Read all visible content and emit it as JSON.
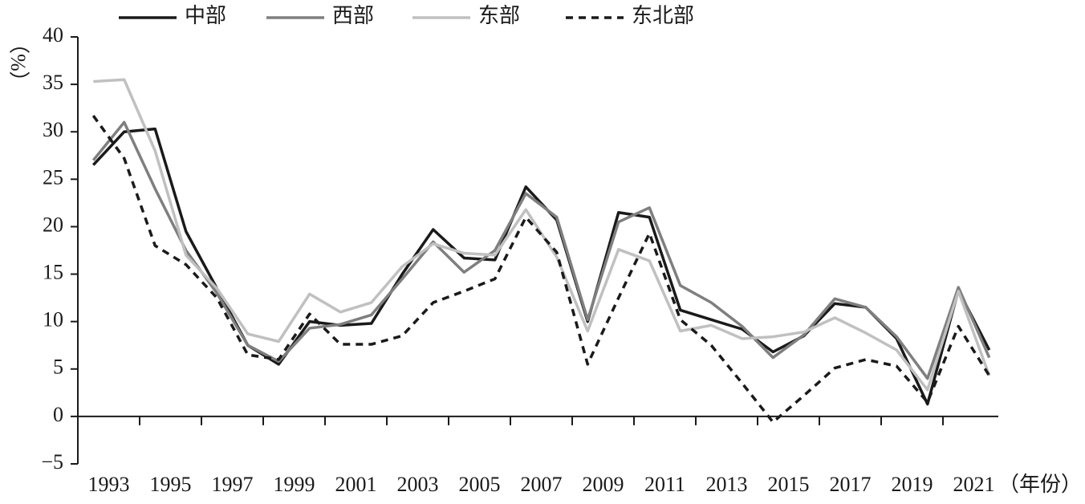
{
  "chart_data": {
    "type": "line",
    "y_label": "（%）",
    "x_label": "（年份）",
    "categories": [
      "1993",
      null,
      "1995",
      null,
      "1997",
      null,
      "1999",
      null,
      "2001",
      null,
      "2003",
      null,
      "2005",
      null,
      "2007",
      null,
      "2009",
      null,
      "2011",
      null,
      "2013",
      null,
      "2015",
      null,
      "2017",
      null,
      "2019",
      null,
      "2021",
      null
    ],
    "series": [
      {
        "name": "中部",
        "color": "#1a1a1a",
        "dashed": false,
        "values": [
          26.5,
          30,
          30.3,
          19.5,
          13.5,
          7.5,
          5.5,
          10,
          9.6,
          9.8,
          15,
          19.7,
          16.7,
          16.5,
          24.2,
          20.7,
          10,
          21.5,
          21,
          11.2,
          10.2,
          9.2,
          6.8,
          8.5,
          11.9,
          11.5,
          8.2,
          1.3,
          13.3,
          7
        ]
      },
      {
        "name": "西部",
        "color": "#7f7f7f",
        "dashed": false,
        "values": [
          27,
          31,
          24,
          17.5,
          13,
          7.5,
          5.8,
          9.3,
          9.7,
          10.7,
          14.5,
          18.4,
          15.2,
          17.5,
          23.5,
          21,
          10.2,
          20.5,
          22,
          13.8,
          12,
          9.5,
          6.2,
          8.6,
          12.4,
          11.5,
          8.4,
          4,
          13.6,
          6.2
        ]
      },
      {
        "name": "东部",
        "color": "#c0c0c0",
        "dashed": false,
        "values": [
          35.3,
          35.5,
          28,
          17,
          13.5,
          8.7,
          7.9,
          12.9,
          11,
          12,
          15.8,
          18.2,
          17.2,
          17,
          21.8,
          16.8,
          9,
          17.6,
          16.4,
          9,
          9.6,
          8.2,
          8.4,
          8.9,
          10.4,
          8.8,
          7,
          2.8,
          13.2,
          4.3
        ]
      },
      {
        "name": "东北部",
        "color": "#1a1a1a",
        "dashed": true,
        "values": [
          31.7,
          27.2,
          18,
          16,
          12.5,
          6.5,
          6,
          10.8,
          7.6,
          7.6,
          8.5,
          12,
          13.2,
          14.5,
          21,
          17.3,
          5.5,
          12.5,
          19.3,
          10.2,
          7.5,
          3.5,
          -0.6,
          2.2,
          5.1,
          6,
          5.3,
          1.5,
          9.5,
          4.3
        ]
      }
    ],
    "ylim": [
      -5,
      40
    ],
    "yticks": [
      {
        "value": -5,
        "label": "−5"
      },
      0,
      5,
      10,
      15,
      20,
      25,
      30,
      35,
      40
    ]
  }
}
